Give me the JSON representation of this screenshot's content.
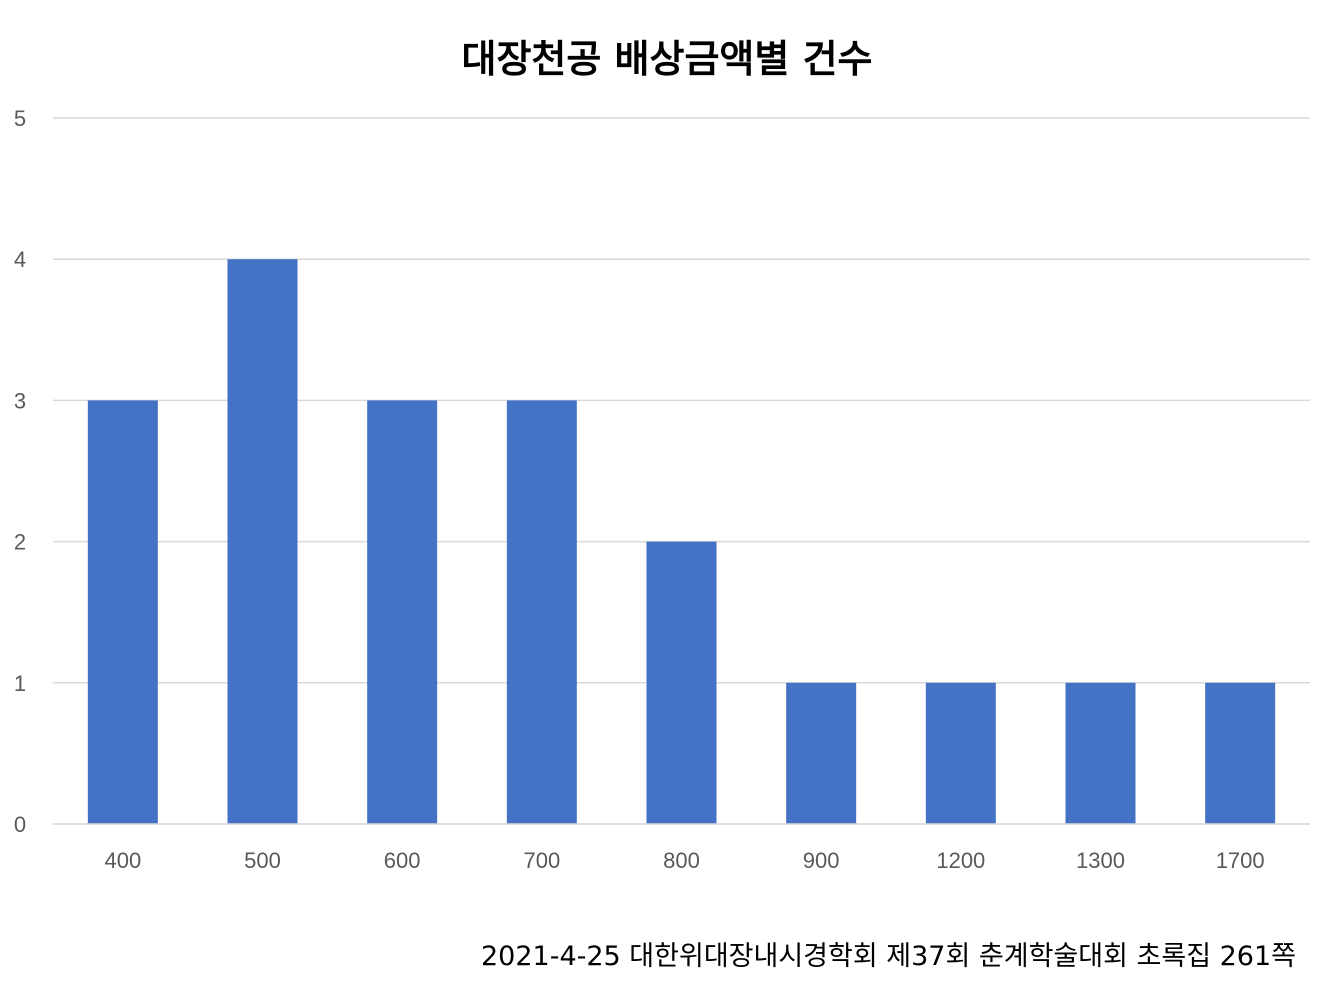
{
  "chart_data": {
    "type": "bar",
    "title": "대장천공 배상금액별 건수",
    "categories": [
      "400",
      "500",
      "600",
      "700",
      "800",
      "900",
      "1200",
      "1300",
      "1700"
    ],
    "values": [
      3,
      4,
      3,
      3,
      2,
      1,
      1,
      1,
      1
    ],
    "ylim": [
      0,
      5
    ],
    "yticks": [
      "0",
      "1",
      "2",
      "3",
      "4",
      "5"
    ],
    "xlabel": "",
    "ylabel": "",
    "grid": true,
    "legend": "none",
    "bar_color": "#4472C4",
    "grid_color": "#D9D9D9"
  },
  "caption": "2021-4-25 대한위대장내시경학회 제37회 춘계학술대회 초록집 261쪽"
}
